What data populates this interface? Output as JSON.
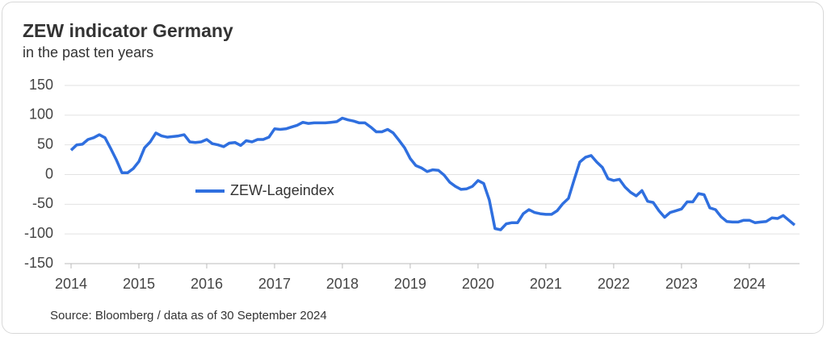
{
  "chart_data": {
    "type": "line",
    "title": "ZEW indicator Germany",
    "subtitle": "in the past ten years",
    "source": "Source: Bloomberg / data as of 30 September 2024",
    "x": [
      2014,
      2014.083,
      2014.167,
      2014.25,
      2014.333,
      2014.417,
      2014.5,
      2014.583,
      2014.667,
      2014.75,
      2014.833,
      2014.917,
      2015,
      2015.083,
      2015.167,
      2015.25,
      2015.333,
      2015.417,
      2015.5,
      2015.583,
      2015.667,
      2015.75,
      2015.833,
      2015.917,
      2016,
      2016.083,
      2016.167,
      2016.25,
      2016.333,
      2016.417,
      2016.5,
      2016.583,
      2016.667,
      2016.75,
      2016.833,
      2016.917,
      2017,
      2017.083,
      2017.167,
      2017.25,
      2017.333,
      2017.417,
      2017.5,
      2017.583,
      2017.667,
      2017.75,
      2017.833,
      2017.917,
      2018,
      2018.083,
      2018.167,
      2018.25,
      2018.333,
      2018.417,
      2018.5,
      2018.583,
      2018.667,
      2018.75,
      2018.833,
      2018.917,
      2019,
      2019.083,
      2019.167,
      2019.25,
      2019.333,
      2019.417,
      2019.5,
      2019.583,
      2019.667,
      2019.75,
      2019.833,
      2019.917,
      2020,
      2020.083,
      2020.167,
      2020.25,
      2020.333,
      2020.417,
      2020.5,
      2020.583,
      2020.667,
      2020.75,
      2020.833,
      2020.917,
      2021,
      2021.083,
      2021.167,
      2021.25,
      2021.333,
      2021.417,
      2021.5,
      2021.583,
      2021.667,
      2021.75,
      2021.833,
      2021.917,
      2022,
      2022.083,
      2022.167,
      2022.25,
      2022.333,
      2022.417,
      2022.5,
      2022.583,
      2022.667,
      2022.75,
      2022.833,
      2022.917,
      2023,
      2023.083,
      2023.167,
      2023.25,
      2023.333,
      2023.417,
      2023.5,
      2023.583,
      2023.667,
      2023.75,
      2023.833,
      2023.917,
      2024,
      2024.083,
      2024.167,
      2024.25,
      2024.333,
      2024.417,
      2024.5,
      2024.583,
      2024.667
    ],
    "series": [
      {
        "name": "ZEW-Lageindex",
        "color": "#2f6fdf",
        "values": [
          41,
          50,
          51,
          59,
          62,
          67,
          62,
          44,
          25,
          3,
          3,
          10,
          22,
          45,
          55,
          70,
          65,
          63,
          64,
          65,
          67,
          55,
          54,
          55,
          59,
          52,
          50,
          47,
          53,
          54,
          49,
          57,
          55,
          59,
          59,
          63,
          77,
          76,
          77,
          80,
          83,
          88,
          86,
          87,
          87,
          87,
          88,
          89,
          95,
          92,
          90,
          87,
          87,
          80,
          72,
          72,
          76,
          70,
          58,
          45,
          27,
          15,
          11,
          5,
          8,
          7,
          -1,
          -13,
          -20,
          -25,
          -24,
          -20,
          -10,
          -15,
          -43,
          -91,
          -93,
          -83,
          -81,
          -81,
          -66,
          -59,
          -64,
          -66,
          -67,
          -67,
          -61,
          -49,
          -40,
          -9,
          21,
          29,
          32,
          21,
          12,
          -7,
          -10,
          -8,
          -21,
          -30,
          -36,
          -27,
          -45,
          -47,
          -61,
          -72,
          -64,
          -61,
          -58,
          -46,
          -46,
          -32,
          -34,
          -56,
          -59,
          -71,
          -79,
          -80,
          -80,
          -77,
          -77,
          -81,
          -80,
          -79,
          -73,
          -74,
          -69,
          -77,
          -85
        ]
      }
    ],
    "xlim": [
      2014,
      2024.74
    ],
    "xticks": [
      2014,
      2015,
      2016,
      2017,
      2018,
      2019,
      2020,
      2021,
      2022,
      2023,
      2024
    ],
    "ylim": [
      -150,
      150
    ],
    "yticks": [
      -150,
      -100,
      -50,
      0,
      50,
      100,
      150
    ],
    "grid": true
  }
}
